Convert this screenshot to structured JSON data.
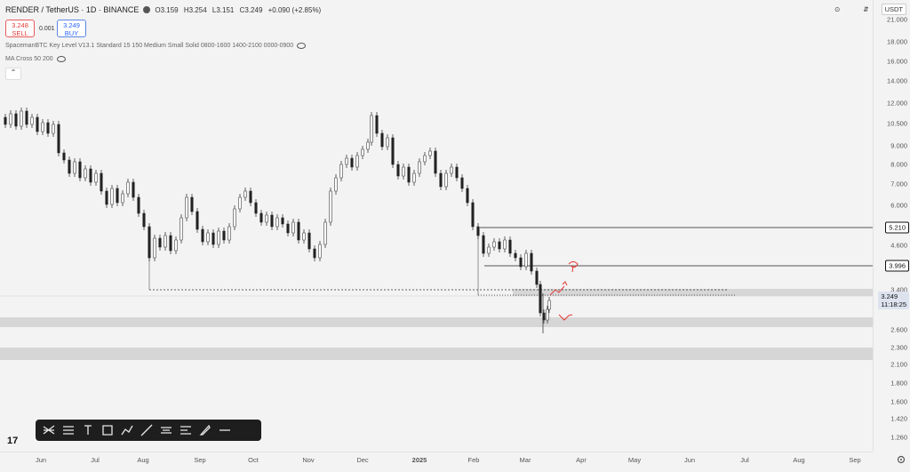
{
  "header": {
    "symbol": "RENDER / TetherUS · 1D · BINANCE",
    "open": "O3.159",
    "high": "H3.254",
    "low": "L3.151",
    "close": "C3.249",
    "change": "+0.090 (+2.85%)"
  },
  "trade": {
    "sell_price": "3.248",
    "sell_label": "SELL",
    "spread": "0.001",
    "buy_price": "3.249",
    "buy_label": "BUY"
  },
  "indicators": [
    "SpacemanBTC Key Level V13.1 Standard 15 150 Medium Small Solid 0800-1600 1400-2100 0000-0900",
    "MA Cross 50 200"
  ],
  "currency": "USDT",
  "price_ticks": [
    "21.000",
    "18.000",
    "16.000",
    "14.000",
    "12.000",
    "10.500",
    "9.000",
    "8.000",
    "7.000",
    "6.000",
    "5.210",
    "4.600",
    "3.996",
    "3.400",
    "3.249",
    "2.600",
    "2.300",
    "2.100",
    "1.800",
    "1.600",
    "1.420",
    "1.260"
  ],
  "price_tags": {
    "level_high": "5.210",
    "level_mid": "3.996",
    "current": "3.249",
    "countdown": "11:18:25"
  },
  "time_ticks": [
    "Jun",
    "Jul",
    "Aug",
    "Sep",
    "Oct",
    "Nov",
    "Dec",
    "2025",
    "Feb",
    "Mar",
    "Apr",
    "May",
    "Jun",
    "Jul",
    "Aug",
    "Sep"
  ],
  "colors": {
    "up": "#26a69a",
    "down": "#222222",
    "annotation": "#e53935",
    "zone": "#d6d6d6"
  },
  "toolbar_icons": [
    "pitchfork-icon",
    "fib-retracement-icon",
    "text-icon",
    "rectangle-icon",
    "path-icon",
    "trendline-icon",
    "parallel-channel-icon",
    "regression-icon",
    "brush-icon",
    "horizontal-line-icon"
  ]
}
